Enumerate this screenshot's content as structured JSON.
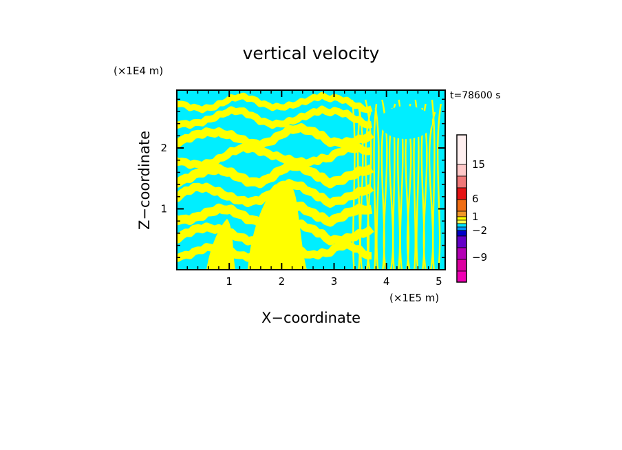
{
  "chart_data": {
    "type": "heatmap",
    "title": "vertical velocity",
    "xlabel": "X−coordinate",
    "ylabel": "Z−coordinate",
    "x_unit": "(×1E5 m)",
    "y_unit": "(×1E4 m)",
    "time_label": "t=78600 s",
    "xlim": [
      0,
      5.12
    ],
    "ylim": [
      0,
      2.95
    ],
    "x_ticks": [
      1,
      2,
      3,
      4,
      5
    ],
    "y_ticks": [
      1,
      2
    ],
    "x_tick_labels": [
      "1",
      "2",
      "3",
      "4",
      "5"
    ],
    "y_tick_labels": [
      "1",
      "2"
    ],
    "field_colors": {
      "positive": "#ffff00",
      "negative": "#00eeff"
    },
    "colorbar": {
      "tick_labels": [
        "15",
        "6",
        "1",
        "−2",
        "−9"
      ],
      "tick_values": [
        15,
        6,
        1,
        -2,
        -9
      ],
      "bands_top_to_bottom": [
        "#fff0f0",
        "#ffc8c8",
        "#f07878",
        "#e61414",
        "#f06e14",
        "#f09628",
        "#ffff00",
        "#ffff50",
        "#00e6ff",
        "#0096ff",
        "#0000c8",
        "#6400c8",
        "#b400b4",
        "#dc00a0",
        "#f000b4"
      ]
    }
  }
}
